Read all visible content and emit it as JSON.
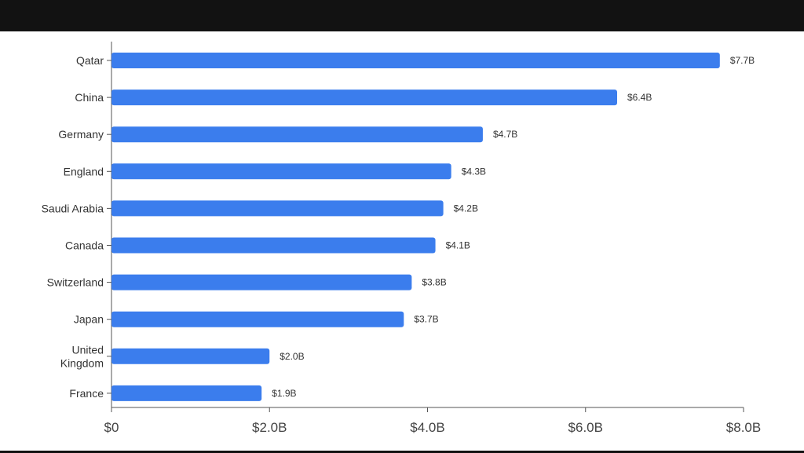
{
  "chart_data": {
    "type": "bar",
    "orientation": "horizontal",
    "categories": [
      [
        "Qatar"
      ],
      [
        "China"
      ],
      [
        "Germany"
      ],
      [
        "England"
      ],
      [
        "Saudi Arabia"
      ],
      [
        "Canada"
      ],
      [
        "Switzerland"
      ],
      [
        "Japan"
      ],
      [
        "United",
        "Kingdom"
      ],
      [
        "France"
      ]
    ],
    "values": [
      7.7,
      6.4,
      4.7,
      4.3,
      4.2,
      4.1,
      3.8,
      3.7,
      2.0,
      1.9
    ],
    "value_labels": [
      "$7.7B",
      "$6.4B",
      "$4.7B",
      "$4.3B",
      "$4.2B",
      "$4.1B",
      "$3.8B",
      "$3.7B",
      "$2.0B",
      "$1.9B"
    ],
    "x_ticks": [
      0,
      2,
      4,
      6,
      8
    ],
    "x_tick_labels": [
      "$0",
      "$2.0B",
      "$4.0B",
      "$6.0B",
      "$8.0B"
    ],
    "xlim": [
      0,
      8
    ],
    "grid": false,
    "legend": "none",
    "title": "",
    "xlabel": "",
    "ylabel": "",
    "colors": {
      "bar": "#3b7ded",
      "axis": "#555555",
      "text": "#333333"
    }
  }
}
